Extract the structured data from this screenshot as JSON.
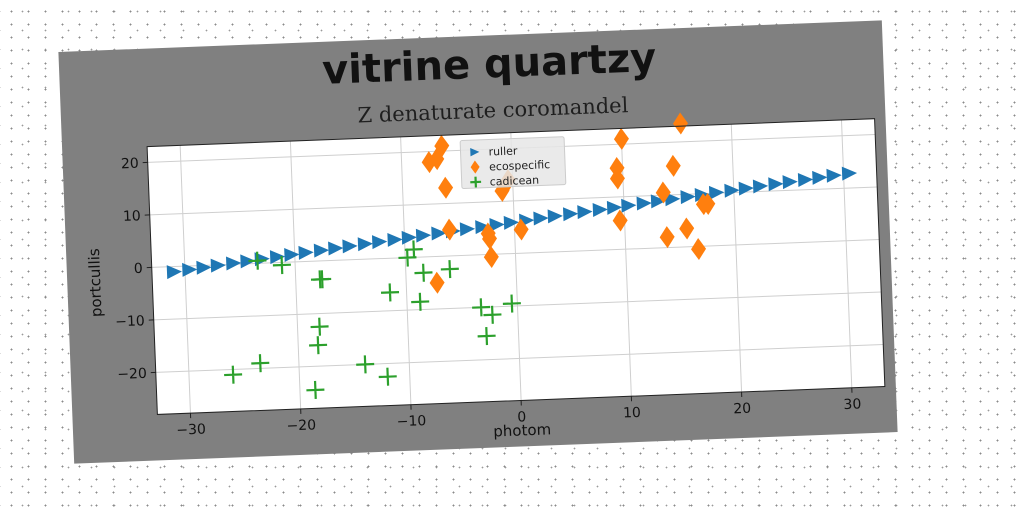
{
  "chart_data": {
    "type": "scatter",
    "title": "vitrine quartzy",
    "subtitle": "Z denaturate coromandel",
    "xlabel": "photom",
    "ylabel": "portcullis",
    "xlim": [
      -33,
      33
    ],
    "ylim": [
      -28,
      23
    ],
    "xticks": [
      -30,
      -20,
      -10,
      0,
      10,
      20,
      30
    ],
    "yticks": [
      -20,
      -10,
      0,
      10,
      20
    ],
    "xtick_labels": [
      "−30",
      "−20",
      "−10",
      "0",
      "10",
      "20",
      "30"
    ],
    "ytick_labels": [
      "−20",
      "−10",
      "0",
      "10",
      "20"
    ],
    "grid": true,
    "legend_position": "top-center",
    "series": [
      {
        "name": "ruller",
        "marker": "triangle-right",
        "color": "#1f77b4",
        "x": [
          -31.0,
          -29.6,
          -28.3,
          -27.0,
          -25.6,
          -24.3,
          -23.0,
          -21.6,
          -20.3,
          -19.0,
          -17.6,
          -16.3,
          -15.0,
          -13.6,
          -12.3,
          -10.9,
          -9.6,
          -8.3,
          -6.9,
          -5.6,
          -4.3,
          -2.9,
          -1.6,
          -0.3,
          1.1,
          2.4,
          3.7,
          5.1,
          6.4,
          7.8,
          9.1,
          10.4,
          11.8,
          13.1,
          14.4,
          15.8,
          17.1,
          18.4,
          19.8,
          21.1,
          22.4,
          23.8,
          25.1,
          26.5,
          27.8,
          29.1,
          30.5
        ],
        "y": [
          -1.0,
          -0.7,
          -0.4,
          -0.1,
          0.2,
          0.5,
          0.8,
          1.1,
          1.4,
          1.7,
          2.0,
          2.3,
          2.6,
          2.9,
          3.2,
          3.5,
          3.8,
          4.1,
          4.4,
          4.7,
          5.0,
          5.3,
          5.6,
          5.9,
          6.2,
          6.5,
          6.8,
          7.1,
          7.4,
          7.7,
          8.0,
          8.3,
          8.6,
          8.9,
          9.2,
          9.5,
          9.8,
          10.1,
          10.4,
          10.7,
          11.0,
          11.3,
          11.6,
          11.9,
          12.2,
          12.5,
          12.8
        ]
      },
      {
        "name": "ecospecific",
        "marker": "thin-diamond",
        "color": "#ff7f0e",
        "x": [
          -7.5,
          -6.8,
          -6.3,
          -6.1,
          -5.9,
          -7.2,
          -2.4,
          -2.3,
          -2.2,
          -1.0,
          -0.4,
          0.6,
          9.5,
          9.5,
          10.0,
          9.6,
          13.6,
          13.8,
          14.6,
          15.4,
          15.6,
          16.6,
          17.2,
          17.6
        ],
        "y": [
          18.0,
          18.5,
          21.0,
          13.0,
          5.0,
          -5.0,
          4.0,
          3.0,
          -0.5,
          12.0,
          14.0,
          4.5,
          15.5,
          13.5,
          21.0,
          5.5,
          10.5,
          2.0,
          15.5,
          23.5,
          3.5,
          -0.5,
          8.0,
          8.0
        ]
      },
      {
        "name": "cadicean",
        "marker": "plus",
        "color": "#2ca02c",
        "x": [
          -26.0,
          -23.5,
          -23.4,
          -21.2,
          -18.6,
          -18.2,
          -18.0,
          -17.8,
          -17.6,
          -14.0,
          -12.0,
          -11.5,
          -9.8,
          -9.2,
          -8.8,
          -8.4,
          -6.0,
          -3.3,
          -2.9,
          -2.3,
          -0.5
        ],
        "y": [
          -21.0,
          -19.0,
          0.5,
          -0.5,
          -24.5,
          -16.0,
          -12.5,
          -3.5,
          -3.5,
          -20.0,
          -22.5,
          -6.5,
          0.0,
          1.5,
          -8.5,
          -3.0,
          -2.5,
          -10.0,
          -15.5,
          -11.5,
          -9.5
        ]
      }
    ]
  }
}
